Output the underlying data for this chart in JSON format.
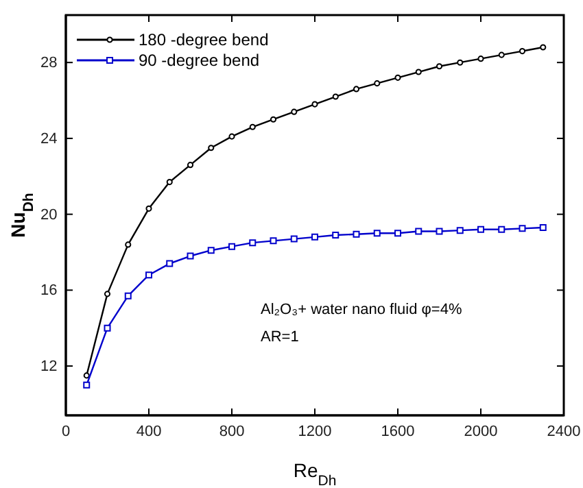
{
  "chart_data": {
    "type": "line",
    "xlabel": "Re$_{Dh}$",
    "ylabel": "Nu$_{Dh}$",
    "x": [
      100,
      200,
      300,
      400,
      500,
      600,
      700,
      800,
      900,
      1000,
      1100,
      1200,
      1300,
      1400,
      1500,
      1600,
      1700,
      1800,
      1900,
      2000,
      2100,
      2200,
      2300
    ],
    "series": [
      {
        "name": "180 -degree bend",
        "color": "#000000",
        "marker": "circle",
        "values": [
          11.5,
          15.8,
          18.4,
          20.3,
          21.7,
          22.6,
          23.5,
          24.1,
          24.6,
          25.0,
          25.4,
          25.8,
          26.2,
          26.6,
          26.9,
          27.2,
          27.5,
          27.8,
          28.0,
          28.2,
          28.4,
          28.6,
          28.8
        ]
      },
      {
        "name": "90 -degree bend",
        "color": "#0000cc",
        "marker": "square",
        "values": [
          11.0,
          14.0,
          15.7,
          16.8,
          17.4,
          17.8,
          18.1,
          18.3,
          18.5,
          18.6,
          18.7,
          18.8,
          18.9,
          18.95,
          19.0,
          19.0,
          19.1,
          19.1,
          19.15,
          19.2,
          19.2,
          19.25,
          19.3
        ]
      }
    ],
    "xlim": [
      0,
      2400
    ],
    "xticks": [
      0,
      400,
      800,
      1200,
      1600,
      2000,
      2400
    ],
    "ylim": [
      9.4,
      30.5
    ],
    "yticks": [
      12,
      16,
      20,
      24,
      28
    ],
    "legend": "top left",
    "grid": false,
    "annotations": [
      "Al₂O₃+ water nano fluid φ=4%",
      "AR=1"
    ]
  }
}
